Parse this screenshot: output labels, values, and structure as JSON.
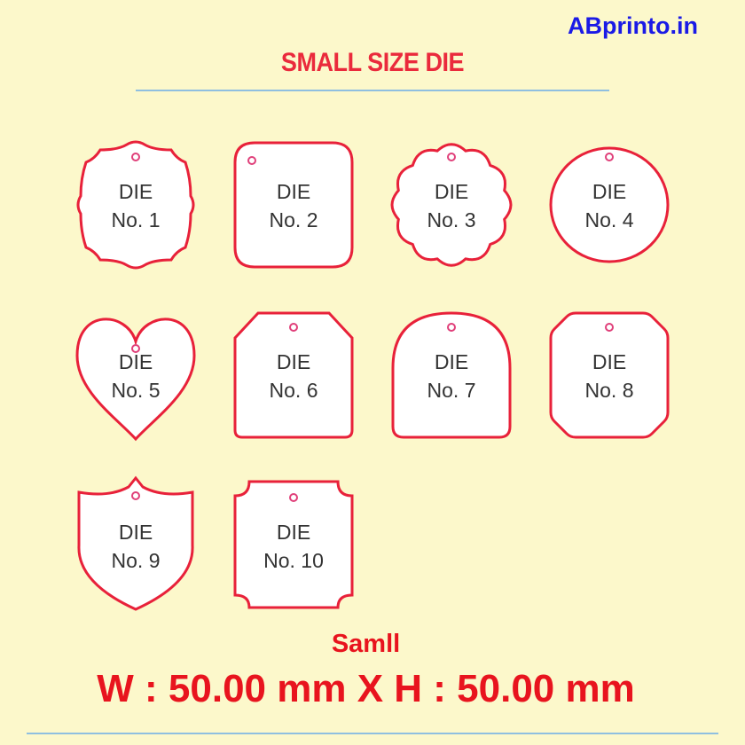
{
  "brand": "ABprinto.in",
  "title": "SMALL SIZE DIE",
  "colors": {
    "background": "#fcf8cb",
    "outline": "#e8213a",
    "title": "#ea2a3c",
    "brand": "#1a1ae6",
    "rule": "#8fbfe0"
  },
  "dies": [
    {
      "line1": "DIE",
      "line2": "No. 1",
      "shape": "bracket"
    },
    {
      "line1": "DIE",
      "line2": "No. 2",
      "shape": "rounded-square"
    },
    {
      "line1": "DIE",
      "line2": "No. 3",
      "shape": "scalloped"
    },
    {
      "line1": "DIE",
      "line2": "No. 4",
      "shape": "circle"
    },
    {
      "line1": "DIE",
      "line2": "No. 5",
      "shape": "heart"
    },
    {
      "line1": "DIE",
      "line2": "No. 6",
      "shape": "chamfered-top"
    },
    {
      "line1": "DIE",
      "line2": "No. 7",
      "shape": "arch"
    },
    {
      "line1": "DIE",
      "line2": "No. 8",
      "shape": "octagon"
    },
    {
      "line1": "DIE",
      "line2": "No. 9",
      "shape": "shield"
    },
    {
      "line1": "DIE",
      "line2": "No. 10",
      "shape": "notched-corners"
    }
  ],
  "size_label": "Samll",
  "dimensions": "W : 50.00 mm X H : 50.00 mm"
}
